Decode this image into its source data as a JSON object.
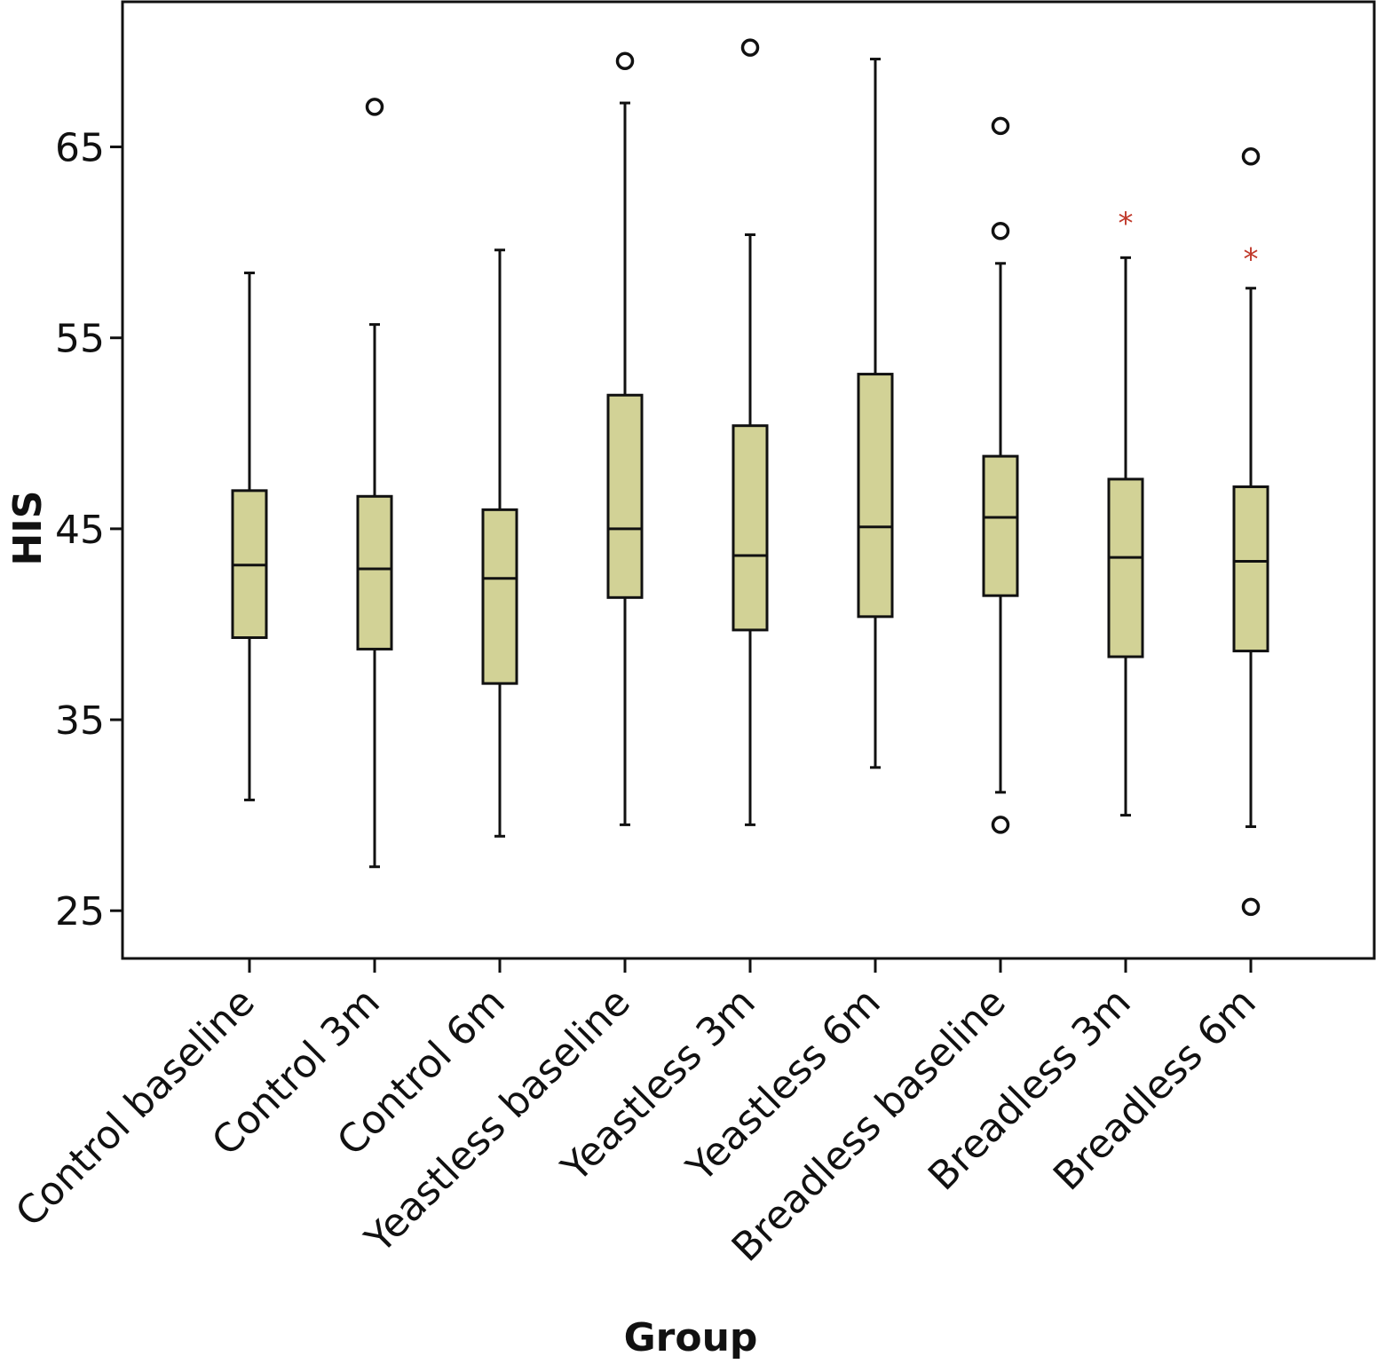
{
  "chart_data": {
    "type": "boxplot",
    "xlabel": "Group",
    "ylabel": "HIS",
    "ylim": [
      22.5,
      72.6
    ],
    "yticks": [
      25,
      35,
      45,
      55,
      65
    ],
    "grid": false,
    "box_color": "#d2d296",
    "extreme_color": "#c0392b",
    "categories": [
      "Control baseline",
      "Control 3m",
      "Control 6m",
      "Yeastless baseline",
      "Yeastless 3m",
      "Yeastless 6m",
      "Breadless baseline",
      "Breadless 3m",
      "Breadless 6m"
    ],
    "boxes": [
      {
        "whisker_low": 30.8,
        "q1": 39.3,
        "median": 43.1,
        "q3": 47.0,
        "whisker_high": 58.4,
        "outliers": [],
        "extremes": []
      },
      {
        "whisker_low": 27.3,
        "q1": 38.7,
        "median": 42.9,
        "q3": 46.7,
        "whisker_high": 55.7,
        "outliers": [
          67.1
        ],
        "extremes": []
      },
      {
        "whisker_low": 28.9,
        "q1": 36.9,
        "median": 42.4,
        "q3": 46.0,
        "whisker_high": 59.6,
        "outliers": [],
        "extremes": []
      },
      {
        "whisker_low": 29.5,
        "q1": 41.4,
        "median": 45.0,
        "q3": 52.0,
        "whisker_high": 67.3,
        "outliers": [
          69.5
        ],
        "extremes": []
      },
      {
        "whisker_low": 29.5,
        "q1": 39.7,
        "median": 43.6,
        "q3": 50.4,
        "whisker_high": 60.4,
        "outliers": [
          70.2
        ],
        "extremes": []
      },
      {
        "whisker_low": 32.5,
        "q1": 40.4,
        "median": 45.1,
        "q3": 53.1,
        "whisker_high": 69.6,
        "outliers": [],
        "extremes": []
      },
      {
        "whisker_low": 31.2,
        "q1": 41.5,
        "median": 45.6,
        "q3": 48.8,
        "whisker_high": 58.9,
        "outliers": [
          66.1,
          60.6,
          29.5
        ],
        "extremes": []
      },
      {
        "whisker_low": 30.0,
        "q1": 38.3,
        "median": 43.5,
        "q3": 47.6,
        "whisker_high": 59.2,
        "outliers": [],
        "extremes": [
          61.5
        ]
      },
      {
        "whisker_low": 29.4,
        "q1": 38.6,
        "median": 43.3,
        "q3": 47.2,
        "whisker_high": 57.6,
        "outliers": [
          64.5,
          25.2
        ],
        "extremes": [
          59.6
        ]
      }
    ]
  }
}
